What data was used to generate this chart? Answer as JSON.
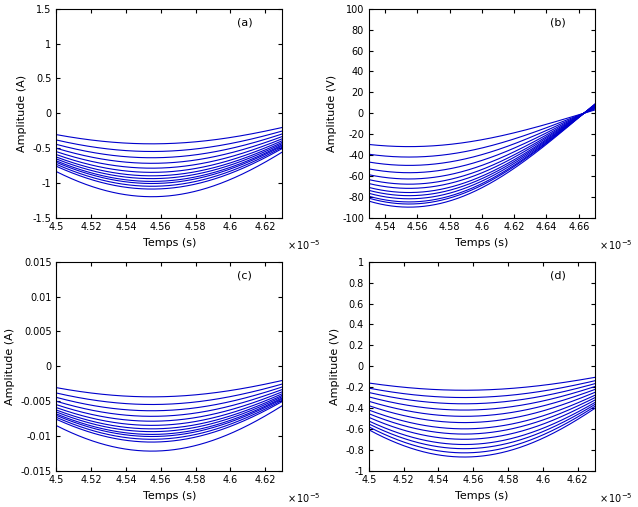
{
  "subplots": [
    {
      "label": "(a)",
      "ylabel": "Amplitude (A)",
      "xlabel": "Temps (s)",
      "xlim": [
        4.5,
        4.63
      ],
      "xticks": [
        4.5,
        4.52,
        4.54,
        4.56,
        4.58,
        4.6,
        4.62
      ],
      "xtick_labels": [
        "4.5",
        "4.52",
        "4.54",
        "4.56",
        "4.58",
        "4.6",
        "4.62"
      ],
      "ylim": [
        -1.5,
        1.5
      ],
      "yticks": [
        -1.5,
        -1.0,
        -0.5,
        0,
        0.5,
        1.0,
        1.5
      ],
      "ytick_labels": [
        "-1.5",
        "-1",
        "-0.5",
        "0",
        "0.5",
        "1",
        "1.5"
      ],
      "amplitudes": [
        0.44,
        0.55,
        0.64,
        0.72,
        0.79,
        0.85,
        0.9,
        0.94,
        0.98,
        1.01,
        1.05,
        1.09,
        1.2
      ],
      "freq_plot": 2.30769,
      "phase": 1.5
    },
    {
      "label": "(b)",
      "ylabel": "Amplitude (V)",
      "xlabel": "Temps (s)",
      "xlim": [
        4.53,
        4.67
      ],
      "xticks": [
        4.54,
        4.56,
        4.58,
        4.6,
        4.62,
        4.64,
        4.66
      ],
      "xtick_labels": [
        "4.54",
        "4.56",
        "4.58",
        "4.6",
        "4.62",
        "4.64",
        "4.66"
      ],
      "ylim": [
        -100,
        100
      ],
      "yticks": [
        -100,
        -80,
        -60,
        -40,
        -20,
        0,
        20,
        40,
        60,
        80,
        100
      ],
      "ytick_labels": [
        "-100",
        "-80",
        "-60",
        "-40",
        "-20",
        "0",
        "20",
        "40",
        "60",
        "80",
        "100"
      ],
      "amplitudes": [
        32,
        42,
        50,
        57,
        63,
        68,
        72,
        76,
        79,
        82,
        85,
        87,
        90
      ],
      "freq_plot": 2.30769,
      "phase": 1.5
    },
    {
      "label": "(c)",
      "ylabel": "Amplitude (A)",
      "xlabel": "Temps (s)",
      "xlim": [
        4.5,
        4.63
      ],
      "xticks": [
        4.5,
        4.52,
        4.54,
        4.56,
        4.58,
        4.6,
        4.62
      ],
      "xtick_labels": [
        "4.5",
        "4.52",
        "4.54",
        "4.56",
        "4.58",
        "4.6",
        "4.62"
      ],
      "ylim": [
        -0.015,
        0.015
      ],
      "yticks": [
        -0.015,
        -0.01,
        -0.005,
        0,
        0.005,
        0.01,
        0.015
      ],
      "ytick_labels": [
        "-0.015",
        "-0.01",
        "-0.005",
        "0",
        "0.005",
        "0.01",
        "0.015"
      ],
      "amplitudes": [
        0.0044,
        0.0055,
        0.0064,
        0.0072,
        0.0079,
        0.0085,
        0.009,
        0.0094,
        0.0098,
        0.0101,
        0.0105,
        0.0109,
        0.0122
      ],
      "freq_plot": 2.30769,
      "phase": 1.5
    },
    {
      "label": "(d)",
      "ylabel": "Amplitude (V)",
      "xlabel": "Temps (s)",
      "xlim": [
        4.5,
        4.63
      ],
      "xticks": [
        4.5,
        4.52,
        4.54,
        4.56,
        4.58,
        4.6,
        4.62
      ],
      "xtick_labels": [
        "4.5",
        "4.52",
        "4.54",
        "4.56",
        "4.58",
        "4.6",
        "4.62"
      ],
      "ylim": [
        -1.0,
        1.0
      ],
      "yticks": [
        -1.0,
        -0.8,
        -0.6,
        -0.4,
        -0.2,
        0.0,
        0.2,
        0.4,
        0.6,
        0.8,
        1.0
      ],
      "ytick_labels": [
        "-1",
        "-0.8",
        "-0.6",
        "-0.4",
        "-0.2",
        "0",
        "0.2",
        "0.4",
        "0.6",
        "0.8",
        "1"
      ],
      "amplitudes": [
        0.23,
        0.3,
        0.36,
        0.42,
        0.48,
        0.54,
        0.6,
        0.65,
        0.7,
        0.75,
        0.79,
        0.83,
        0.87
      ],
      "freq_plot": 2.30769,
      "phase": 1.5
    }
  ],
  "line_color": "#0000CC",
  "line_width": 0.8,
  "n_points": 3000,
  "scale_exp": -5,
  "background_color": "#ffffff"
}
